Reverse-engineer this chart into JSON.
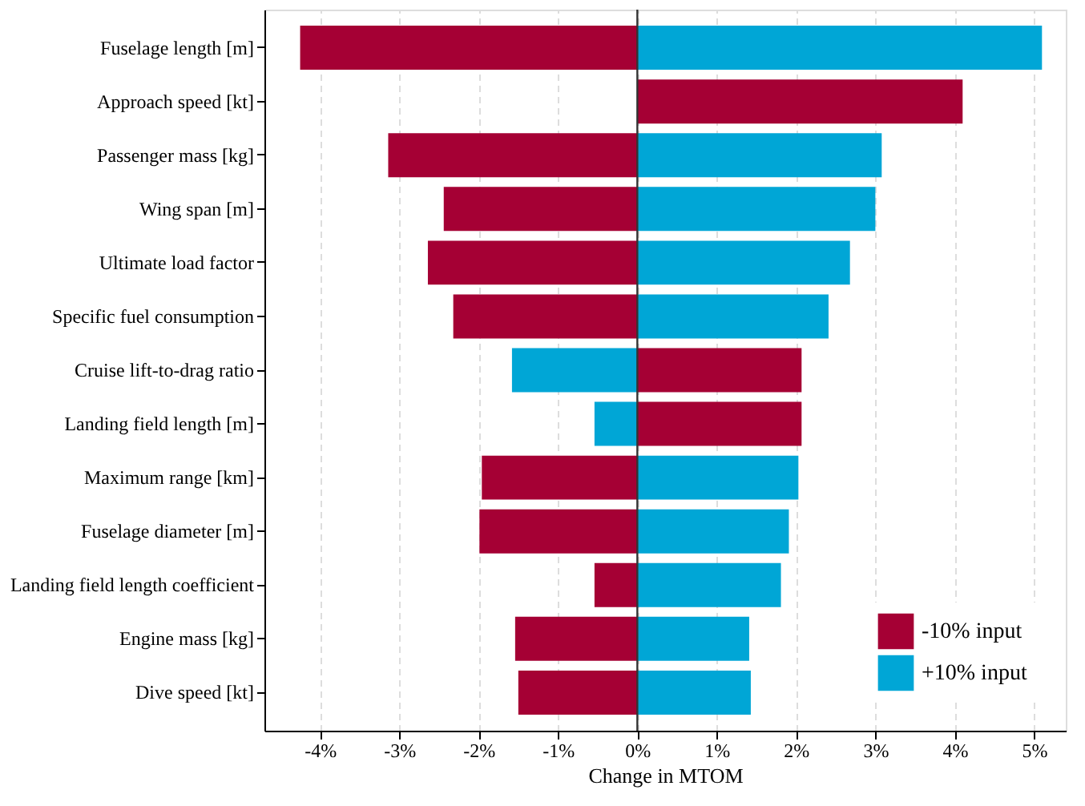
{
  "chart_data": {
    "type": "bar",
    "orientation": "horizontal",
    "stacked": true,
    "xlabel": "Change in MTOM",
    "categories": [
      "Fuselage length [m]",
      "Approach speed [kt]",
      "Passenger mass [kg]",
      "Wing span [m]",
      "Ultimate load factor",
      "Specific fuel consumption",
      "Cruise lift-to-drag ratio",
      "Landing field length [m]",
      "Maximum range [km]",
      "Fuselage diameter [m]",
      "Landing field length coefficient",
      "Engine mass [kg]",
      "Dive speed [kt]"
    ],
    "series": [
      {
        "name": "-10% input",
        "color": "#a50034",
        "values": [
          -4.25,
          4.1,
          -3.14,
          -2.44,
          -2.64,
          -2.32,
          2.07,
          2.07,
          -1.96,
          -1.99,
          -0.54,
          -1.54,
          -1.5
        ]
      },
      {
        "name": "+10% input",
        "color": "#00a6d6",
        "values": [
          5.1,
          0,
          3.08,
          3.0,
          2.68,
          2.41,
          -1.58,
          -0.54,
          2.03,
          1.91,
          1.81,
          1.41,
          1.43
        ]
      }
    ],
    "xlim": [
      -4.7,
      5.4
    ],
    "xticks": [
      {
        "value": -4,
        "label": "-4%"
      },
      {
        "value": -3,
        "label": "-3%"
      },
      {
        "value": -2,
        "label": "-2%"
      },
      {
        "value": -1,
        "label": "-1%"
      },
      {
        "value": 0,
        "label": "0%"
      },
      {
        "value": 1,
        "label": "1%"
      },
      {
        "value": 2,
        "label": "2%"
      },
      {
        "value": 3,
        "label": "3%"
      },
      {
        "value": 4,
        "label": "4%"
      },
      {
        "value": 5,
        "label": "5%"
      }
    ],
    "ref_lines": [
      {
        "axis": "x",
        "value": 0,
        "color": "#333333"
      }
    ],
    "grid": "x",
    "legend": "bottom right"
  }
}
